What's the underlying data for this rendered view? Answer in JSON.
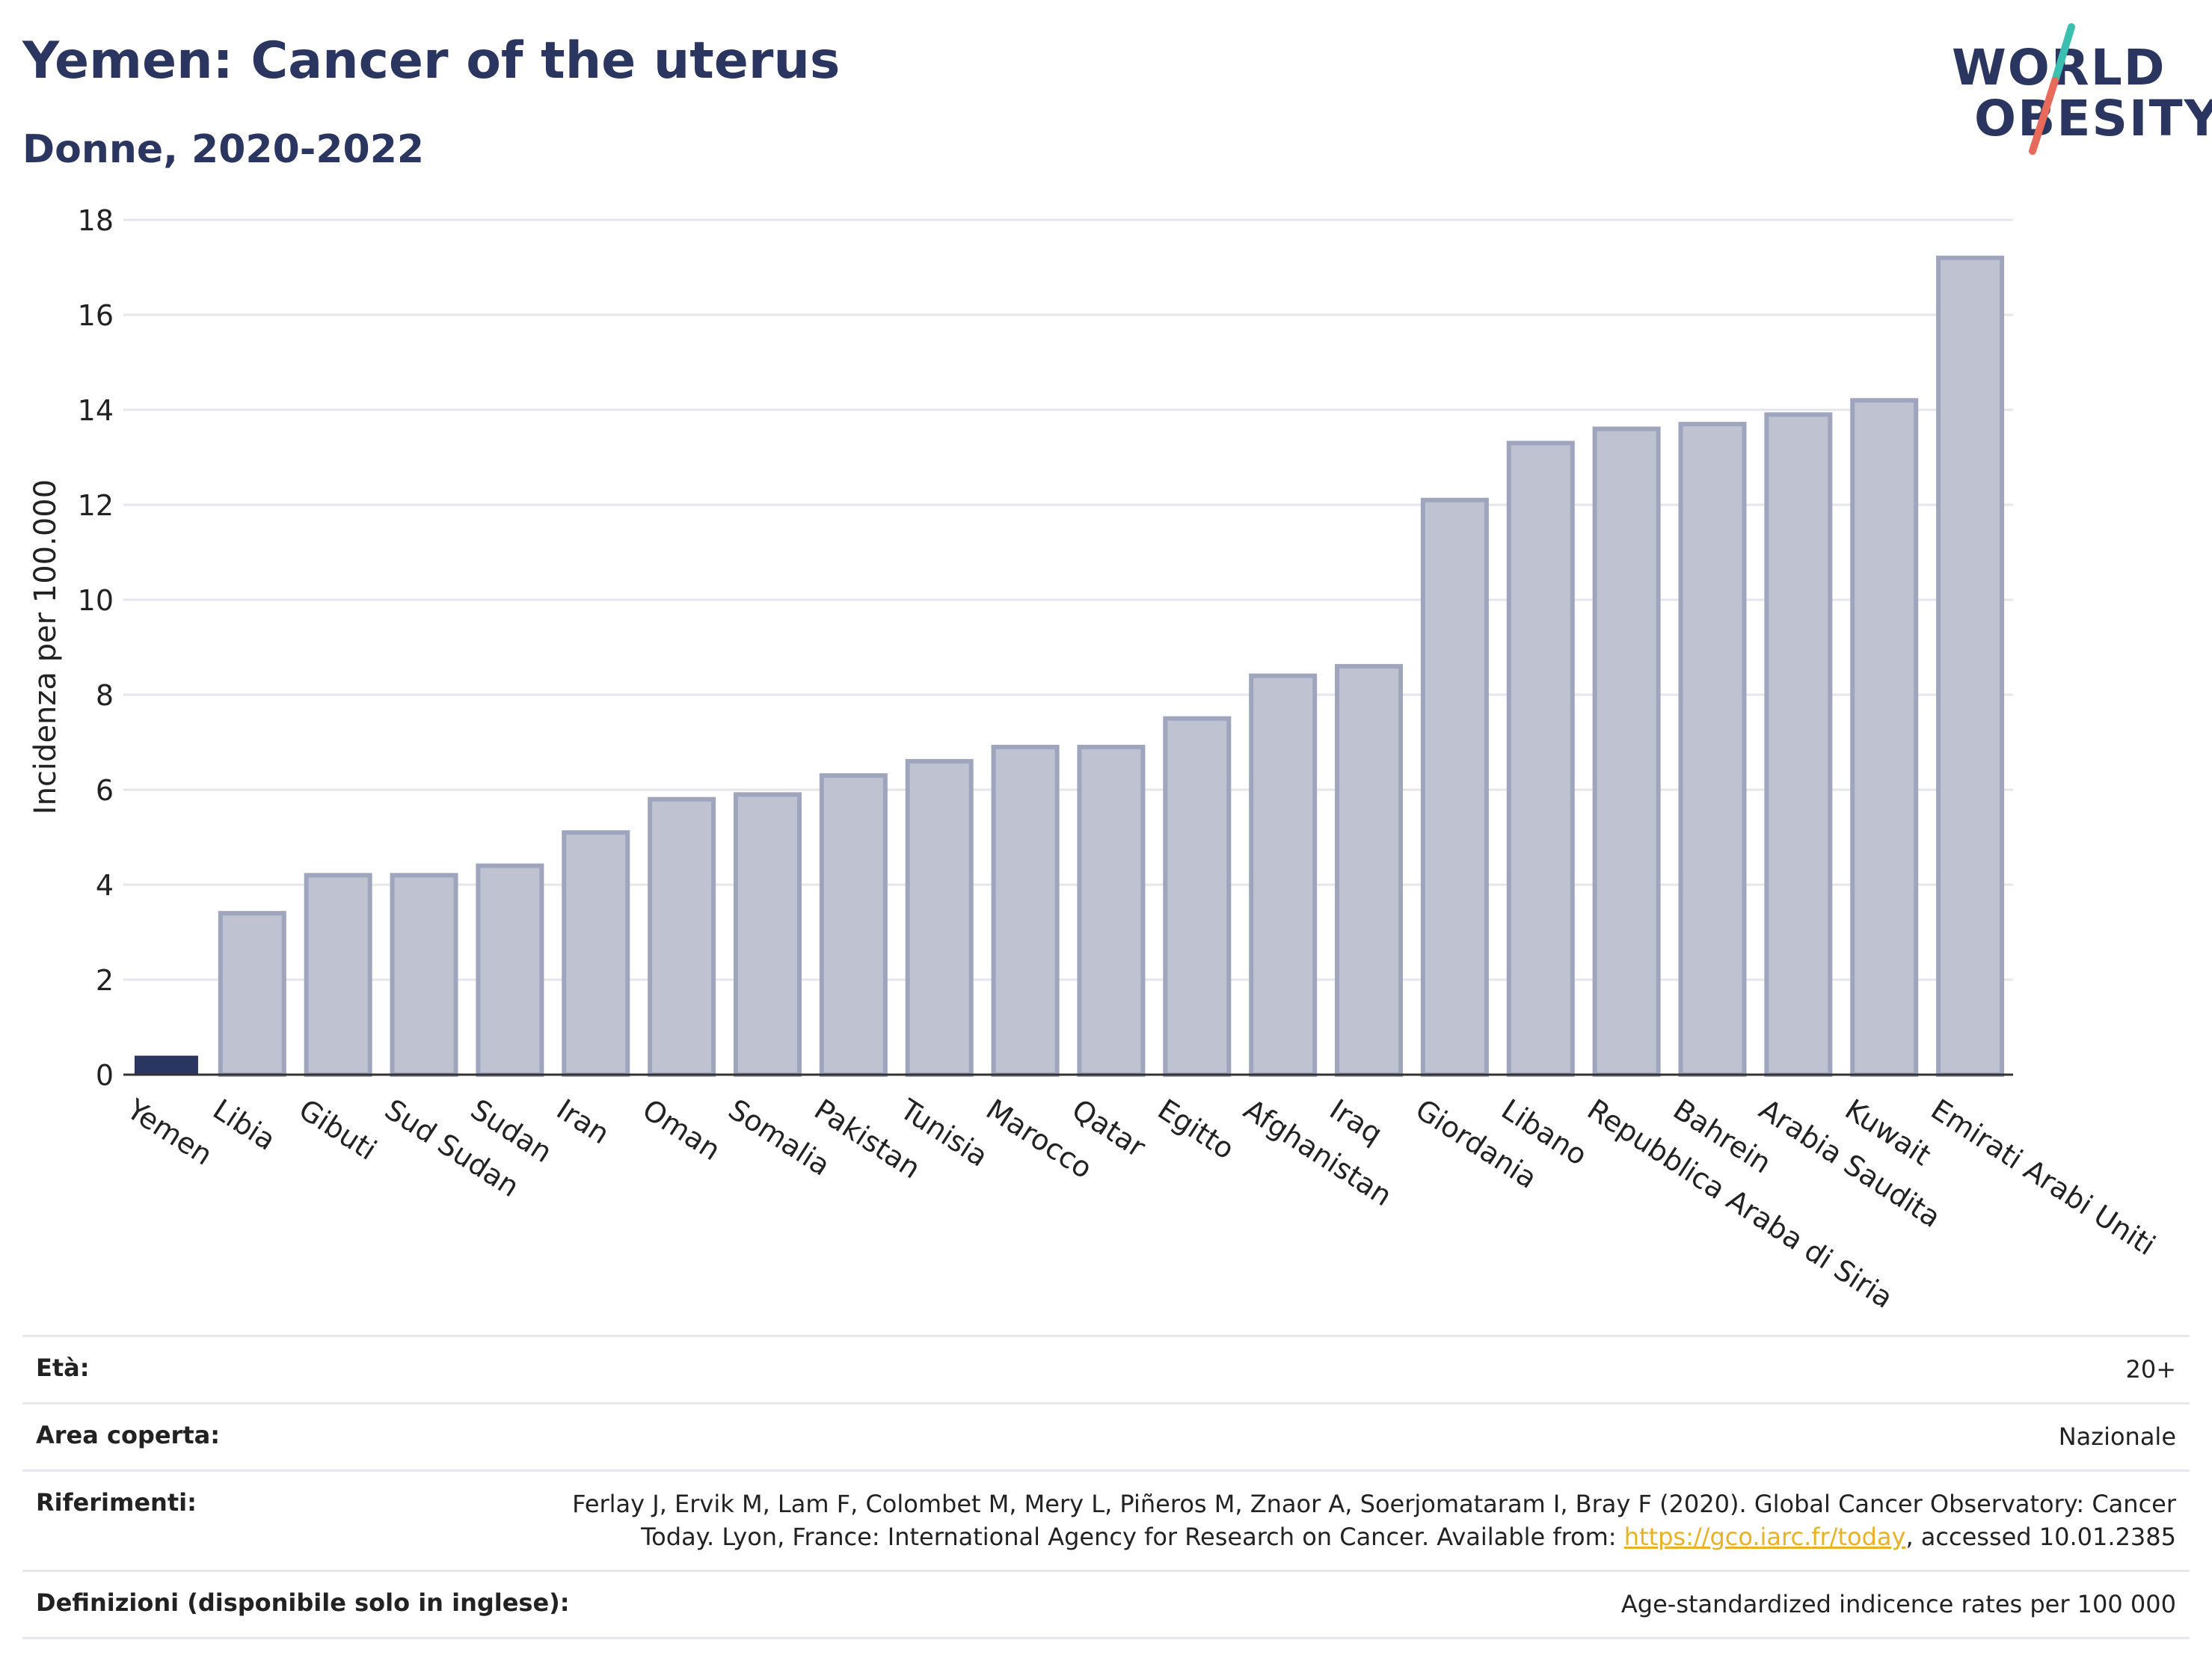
{
  "header": {
    "title": "Yemen: Cancer of the uterus",
    "subtitle": "Donne, 2020-2022"
  },
  "logo": {
    "line1": "WORLD",
    "line2": "OBESITY",
    "accent_teal": "#3bbfb0",
    "accent_red": "#e86a5a"
  },
  "chart_data": {
    "type": "bar",
    "ylabel": "Incidenza per 100.000",
    "ylim": [
      0,
      18
    ],
    "yticks": [
      0,
      2,
      4,
      6,
      8,
      10,
      12,
      14,
      16,
      18
    ],
    "grid": true,
    "highlight_color": "#2b3660",
    "bar_color": "#bfc3d1",
    "bar_border_color": "#9fa5bc",
    "highlight_category": "Yemen",
    "categories": [
      "Yemen",
      "Libia",
      "Gibuti",
      "Sud Sudan",
      "Sudan",
      "Iran",
      "Oman",
      "Somalia",
      "Pakistan",
      "Tunisia",
      "Marocco",
      "Qatar",
      "Egitto",
      "Afghanistan",
      "Iraq",
      "Giordania",
      "Libano",
      "Repubblica Araba di Siria",
      "Bahrein",
      "Arabia Saudita",
      "Kuwait",
      "Emirati Arabi Uniti"
    ],
    "values": [
      0.4,
      3.4,
      4.2,
      4.2,
      4.4,
      5.1,
      5.8,
      5.9,
      6.3,
      6.6,
      6.9,
      6.9,
      7.5,
      8.4,
      8.6,
      12.1,
      13.3,
      13.6,
      13.7,
      13.9,
      14.2,
      17.2
    ]
  },
  "meta": {
    "age_label": "Età:",
    "age_value": "20+",
    "area_label": "Area coperta:",
    "area_value": "Nazionale",
    "ref_label": "Riferimenti:",
    "ref_text_1": "Ferlay J, Ervik M, Lam F, Colombet M, Mery L, Piñeros M, Znaor A, Soerjomataram I, Bray F (2020). Global Cancer Observatory: Cancer Today. Lyon, France: International Agency for Research on Cancer. Available from: ",
    "ref_link": "https://gco.iarc.fr/today",
    "ref_text_2": ", accessed 10.01.2385",
    "def_label": "Definizioni (disponibile solo in inglese):",
    "def_value": "Age-standardized indicence rates per 100 000"
  }
}
